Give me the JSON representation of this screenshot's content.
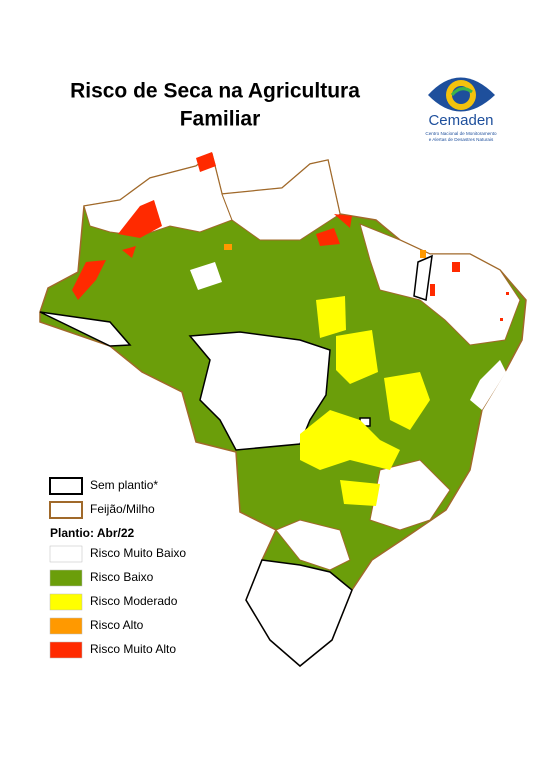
{
  "header": {
    "title_lines": [
      "Risco de Seca na Agricultura",
      "Familiar"
    ]
  },
  "logo": {
    "name": "Cemaden",
    "subtitle_lines": [
      "Centro Nacional de Monitoramento",
      "e Alertas de Desastres Naturais"
    ]
  },
  "legend": {
    "boundaries": [
      {
        "label": "Sem plantio*",
        "color": "#000000"
      },
      {
        "label": "Feijão/Milho",
        "color": "#a0692a"
      }
    ],
    "heading": "Plantio: Abr/22",
    "classes": [
      {
        "label": "Risco Muito Baixo",
        "color": "#ffffff"
      },
      {
        "label": "Risco Baixo",
        "color": "#6b9e0a"
      },
      {
        "label": "Risco Moderado",
        "color": "#ffff00"
      },
      {
        "label": "Risco Alto",
        "color": "#ff9900"
      },
      {
        "label": "Risco Muito Alto",
        "color": "#ff2a00"
      }
    ]
  }
}
